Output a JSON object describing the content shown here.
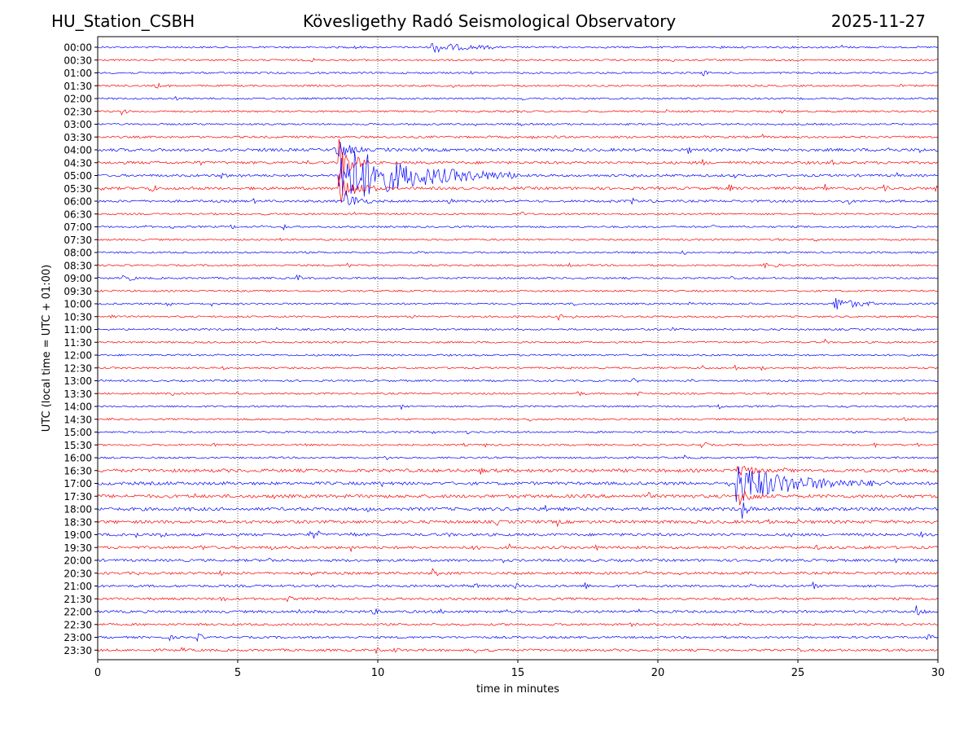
{
  "header": {
    "station": "HU_Station_CSBH",
    "observatory": "Kövesligethy Radó Seismological Observatory",
    "date": "2025-11-27"
  },
  "chart_data": {
    "type": "line",
    "title": "Kövesligethy Radó Seismological Observatory",
    "xlabel": "time in minutes",
    "ylabel": "UTC (local time = UTC + 01:00)",
    "xlim": [
      0,
      30
    ],
    "xticks": [
      0,
      5,
      10,
      15,
      20,
      25,
      30
    ],
    "grid": "vertical dotted at x ticks",
    "row_colors": [
      "#0000ff",
      "#ff0000"
    ],
    "rows": [
      "00:00",
      "00:30",
      "01:00",
      "01:30",
      "02:00",
      "02:30",
      "03:00",
      "03:30",
      "04:00",
      "04:30",
      "05:00",
      "05:30",
      "06:00",
      "06:30",
      "07:00",
      "07:30",
      "08:00",
      "08:30",
      "09:00",
      "09:30",
      "10:00",
      "10:30",
      "11:00",
      "11:30",
      "12:00",
      "12:30",
      "13:00",
      "13:30",
      "14:00",
      "14:30",
      "15:00",
      "15:30",
      "16:00",
      "16:30",
      "17:00",
      "17:30",
      "18:00",
      "18:30",
      "19:00",
      "19:30",
      "20:00",
      "20:30",
      "21:00",
      "21:30",
      "22:00",
      "22:30",
      "23:00",
      "23:30"
    ],
    "noise_level": [
      1.0,
      1.0,
      1.0,
      1.0,
      1.0,
      1.0,
      1.0,
      1.2,
      1.6,
      1.5,
      1.4,
      1.5,
      1.3,
      1.0,
      1.0,
      1.0,
      1.0,
      1.0,
      1.0,
      1.0,
      1.0,
      1.0,
      1.0,
      1.0,
      1.0,
      1.0,
      1.0,
      1.0,
      1.0,
      1.0,
      1.0,
      1.0,
      1.0,
      1.8,
      1.7,
      1.8,
      1.8,
      1.7,
      1.5,
      1.5,
      1.4,
      1.4,
      1.3,
      1.3,
      1.4,
      1.2,
      1.2,
      1.3
    ],
    "events": [
      {
        "row": "00:00",
        "minute": 11.9,
        "amplitude": 6,
        "duration_min": 2.2
      },
      {
        "row": "04:00",
        "minute": 8.5,
        "amplitude": 18,
        "duration_min": 1.0
      },
      {
        "row": "04:30",
        "minute": 8.6,
        "amplitude": 30,
        "duration_min": 1.2
      },
      {
        "row": "05:00",
        "minute": 8.6,
        "amplitude": 40,
        "duration_min": 6.5
      },
      {
        "row": "05:30",
        "minute": 8.6,
        "amplitude": 20,
        "duration_min": 1.5
      },
      {
        "row": "06:00",
        "minute": 8.8,
        "amplitude": 14,
        "duration_min": 1.0
      },
      {
        "row": "10:00",
        "minute": 26.2,
        "amplitude": 10,
        "duration_min": 1.5
      },
      {
        "row": "16:30",
        "minute": 22.9,
        "amplitude": 10,
        "duration_min": 1.0
      },
      {
        "row": "17:00",
        "minute": 22.8,
        "amplitude": 24,
        "duration_min": 5.5
      },
      {
        "row": "17:30",
        "minute": 22.9,
        "amplitude": 12,
        "duration_min": 1.0
      },
      {
        "row": "18:00",
        "minute": 23.0,
        "amplitude": 14,
        "duration_min": 0.4
      },
      {
        "row": "22:00",
        "minute": 29.2,
        "amplitude": 7,
        "duration_min": 0.5
      }
    ]
  }
}
